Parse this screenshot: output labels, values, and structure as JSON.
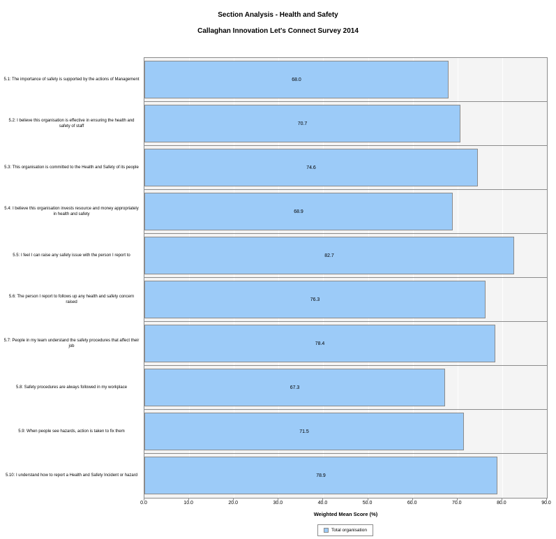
{
  "title": "Section Analysis - Health and Safety",
  "subtitle": "Callaghan Innovation Let's Connect Survey 2014",
  "chart_data": {
    "type": "bar",
    "orientation": "horizontal",
    "title": "Section Analysis - Health and Safety",
    "subtitle": "Callaghan Innovation Let's Connect Survey 2014",
    "categories": [
      "5.1: The importance of safety is supported by the actions of Management",
      "5.2: I believe this organisation is effective in ensuring the health and safety of staff",
      "5.3: This organisation is committed to the Health and Safety of its people",
      "5.4: I believe this organisation invests resource and money appropriately in health and safety",
      "5.5: I feel I can raise any safety issue with the person I report to",
      "5.6: The person I report to follows up any health and safety concern raised",
      "5.7: People in my team understand the safety procedures that affect their job",
      "5.8: Safety procedures are always followed in my workplace",
      "5.9: When people see hazards, action is taken to fix them",
      "5.10: I understand how to report a Health and Safety Incident or hazard"
    ],
    "series": [
      {
        "name": "Total organisation",
        "values": [
          68.0,
          70.7,
          74.6,
          68.9,
          82.7,
          76.3,
          78.4,
          67.3,
          71.5,
          78.9
        ]
      }
    ],
    "value_labels": [
      "68.0",
      "70.7",
      "74.6",
      "68.9",
      "82.7",
      "76.3",
      "78.4",
      "67.3",
      "71.5",
      "78.9"
    ],
    "xlabel": "Weighted Mean Score (%)",
    "xlim": [
      0,
      90
    ],
    "xticks": [
      0,
      10,
      20,
      30,
      40,
      50,
      60,
      70,
      80,
      90
    ],
    "xtick_labels": [
      "0.0",
      "10.0",
      "20.0",
      "30.0",
      "40.0",
      "50.0",
      "60.0",
      "70.0",
      "80.0",
      "90.0"
    ],
    "grid": "vertical-white-gridlines",
    "legend_position": "bottom-center",
    "colors": {
      "bar_fill": "#9CCBF8",
      "bar_border": "#8B8B8B",
      "plot_background": "#F4F4F4",
      "plot_border": "#8B8B8B",
      "gridline": "#FFFFFF",
      "text": "#000000"
    }
  }
}
